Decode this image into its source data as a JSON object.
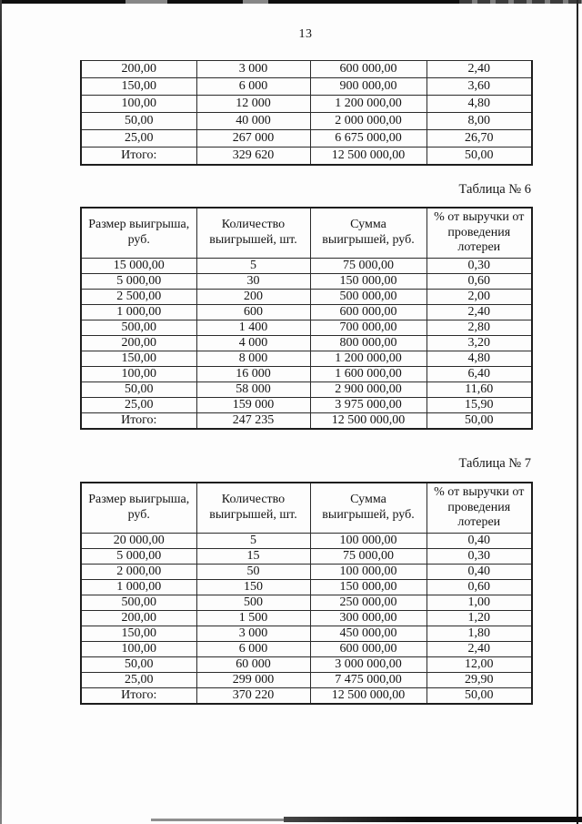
{
  "page": {
    "number": "13"
  },
  "continuation_table": {
    "rows": [
      [
        "200,00",
        "3 000",
        "600 000,00",
        "2,40"
      ],
      [
        "150,00",
        "6 000",
        "900 000,00",
        "3,60"
      ],
      [
        "100,00",
        "12 000",
        "1 200 000,00",
        "4,80"
      ],
      [
        "50,00",
        "40 000",
        "2 000 000,00",
        "8,00"
      ],
      [
        "25,00",
        "267 000",
        "6 675 000,00",
        "26,70"
      ],
      [
        "Итого:",
        "329 620",
        "12 500 000,00",
        "50,00"
      ]
    ]
  },
  "table6": {
    "caption": "Таблица № 6",
    "headers": [
      "Размер выигрыша, руб.",
      "Количество выигрышей, шт.",
      "Сумма выигрышей, руб.",
      "% от выручки от проведения лотереи"
    ],
    "rows": [
      [
        "15 000,00",
        "5",
        "75 000,00",
        "0,30"
      ],
      [
        "5 000,00",
        "30",
        "150 000,00",
        "0,60"
      ],
      [
        "2 500,00",
        "200",
        "500 000,00",
        "2,00"
      ],
      [
        "1 000,00",
        "600",
        "600 000,00",
        "2,40"
      ],
      [
        "500,00",
        "1 400",
        "700 000,00",
        "2,80"
      ],
      [
        "200,00",
        "4 000",
        "800 000,00",
        "3,20"
      ],
      [
        "150,00",
        "8 000",
        "1 200 000,00",
        "4,80"
      ],
      [
        "100,00",
        "16 000",
        "1 600 000,00",
        "6,40"
      ],
      [
        "50,00",
        "58 000",
        "2 900 000,00",
        "11,60"
      ],
      [
        "25,00",
        "159 000",
        "3 975 000,00",
        "15,90"
      ],
      [
        "Итого:",
        "247 235",
        "12 500 000,00",
        "50,00"
      ]
    ]
  },
  "table7": {
    "caption": "Таблица № 7",
    "headers": [
      "Размер выигрыша, руб.",
      "Количество выигрышей, шт.",
      "Сумма выигрышей, руб.",
      "% от выручки от проведения лотереи"
    ],
    "rows": [
      [
        "20 000,00",
        "5",
        "100 000,00",
        "0,40"
      ],
      [
        "5 000,00",
        "15",
        "75 000,00",
        "0,30"
      ],
      [
        "2 000,00",
        "50",
        "100 000,00",
        "0,40"
      ],
      [
        "1 000,00",
        "150",
        "150 000,00",
        "0,60"
      ],
      [
        "500,00",
        "500",
        "250 000,00",
        "1,00"
      ],
      [
        "200,00",
        "1 500",
        "300 000,00",
        "1,20"
      ],
      [
        "150,00",
        "3 000",
        "450 000,00",
        "1,80"
      ],
      [
        "100,00",
        "6 000",
        "600 000,00",
        "2,40"
      ],
      [
        "50,00",
        "60 000",
        "3 000 000,00",
        "12,00"
      ],
      [
        "25,00",
        "299 000",
        "7 475 000,00",
        "29,90"
      ],
      [
        "Итого:",
        "370 220",
        "12 500 000,00",
        "50,00"
      ]
    ]
  }
}
